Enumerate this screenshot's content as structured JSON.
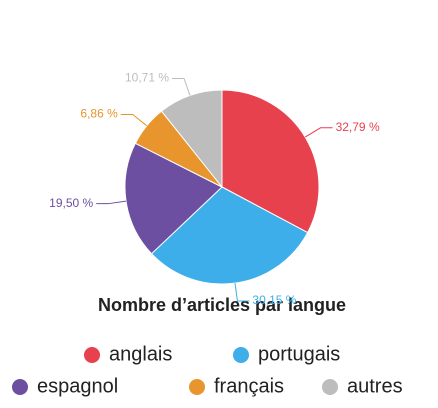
{
  "chart_data": {
    "type": "pie",
    "title": "Nombre d’articles par langue",
    "categories": [
      "anglais",
      "portugais",
      "espagnol",
      "français",
      "autres"
    ],
    "values": [
      32.79,
      30.15,
      19.5,
      6.86,
      10.71
    ],
    "value_labels": [
      "32,79 %",
      "30,15 %",
      "19,50 %",
      "6,86 %",
      "10,71 %"
    ],
    "colors": [
      "#e8414e",
      "#3daee9",
      "#6c4fa0",
      "#e8952e",
      "#bdbdbd"
    ]
  }
}
